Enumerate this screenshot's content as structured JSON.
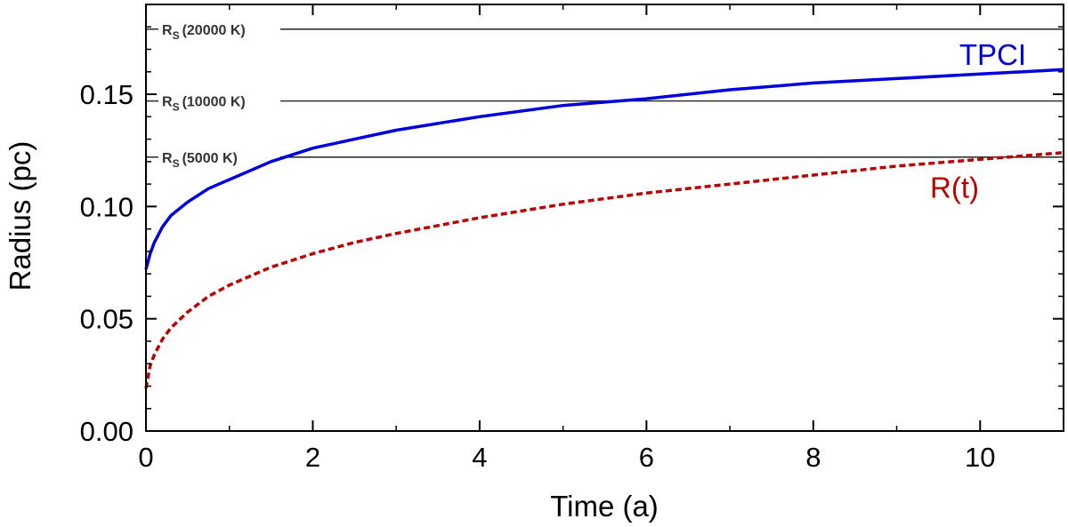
{
  "chart_data": {
    "type": "line",
    "xlabel": "Time (a)",
    "ylabel": "Radius (pc)",
    "xlim": [
      0,
      11
    ],
    "ylim": [
      0,
      0.19
    ],
    "x_ticks": [
      0,
      2,
      4,
      6,
      8,
      10
    ],
    "x_tick_labels": [
      "0",
      "2",
      "4",
      "6",
      "8",
      "10"
    ],
    "y_ticks": [
      0.0,
      0.05,
      0.1,
      0.15
    ],
    "y_tick_labels": [
      "0.00",
      "0.05",
      "0.10",
      "0.15"
    ],
    "grid": false,
    "series": [
      {
        "name": "TPCI",
        "color": "#0000dd",
        "style": "solid",
        "x": [
          0.0,
          0.05,
          0.1,
          0.2,
          0.3,
          0.5,
          0.75,
          1.0,
          1.5,
          2.0,
          2.5,
          3.0,
          4.0,
          5.0,
          6.0,
          7.0,
          8.0,
          9.0,
          10.0,
          11.0
        ],
        "y": [
          0.072,
          0.079,
          0.084,
          0.091,
          0.096,
          0.102,
          0.108,
          0.112,
          0.12,
          0.126,
          0.13,
          0.134,
          0.14,
          0.145,
          0.148,
          0.152,
          0.155,
          0.157,
          0.159,
          0.161
        ]
      },
      {
        "name": "R(t)",
        "color": "#bb0000",
        "style": "dashed",
        "x": [
          0.0,
          0.05,
          0.1,
          0.2,
          0.3,
          0.5,
          0.75,
          1.0,
          1.5,
          2.0,
          2.5,
          3.0,
          4.0,
          5.0,
          6.0,
          7.0,
          8.0,
          9.0,
          10.0,
          11.0
        ],
        "y": [
          0.019,
          0.029,
          0.034,
          0.041,
          0.046,
          0.053,
          0.06,
          0.065,
          0.073,
          0.079,
          0.084,
          0.088,
          0.095,
          0.101,
          0.106,
          0.11,
          0.114,
          0.118,
          0.121,
          0.124
        ]
      }
    ],
    "reference_lines": [
      {
        "y": 0.179,
        "label_main": "R",
        "label_sub": "S",
        "label_rest": "(20000 K)"
      },
      {
        "y": 0.147,
        "label_main": "R",
        "label_sub": "S",
        "label_rest": "(10000 K)"
      },
      {
        "y": 0.122,
        "label_main": "R",
        "label_sub": "S",
        "label_rest": "(5000 K)"
      }
    ],
    "series_labels": [
      {
        "text": "TPCI",
        "color": "#0000dd",
        "x": 9.75,
        "y": 0.163
      },
      {
        "text": "R(t)",
        "color": "#bb0000",
        "x": 9.4,
        "y": 0.104
      }
    ]
  }
}
